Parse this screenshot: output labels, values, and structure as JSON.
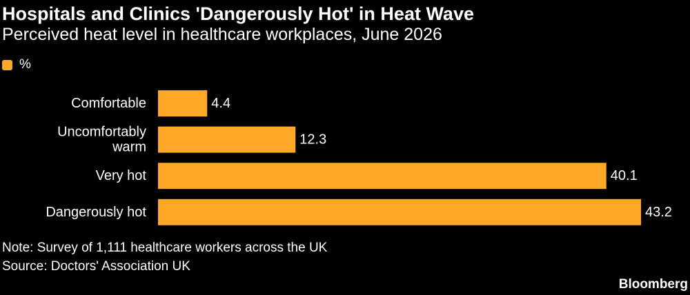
{
  "colors": {
    "background": "#000000",
    "bar": "#ffa726",
    "text": "#ffffff"
  },
  "title": "Hospitals and Clinics 'Dangerously Hot' in Heat Wave",
  "subtitle": "Perceived heat level in healthcare workplaces, June 2026",
  "legend": {
    "label": "%"
  },
  "chart_data": {
    "type": "bar",
    "orientation": "horizontal",
    "categories": [
      "Comfortable",
      "Uncomfortably warm",
      "Very hot",
      "Dangerously hot"
    ],
    "category_lines": [
      [
        "Comfortable"
      ],
      [
        "Uncomfortably",
        "warm"
      ],
      [
        "Very hot"
      ],
      [
        "Dangerously hot"
      ]
    ],
    "series": [
      {
        "name": "%",
        "values": [
          4.4,
          12.3,
          40.1,
          43.2
        ],
        "labels": [
          "4.4",
          "12.3",
          "40.1",
          "43.2"
        ]
      }
    ],
    "xlim": [
      0,
      43.2
    ],
    "grid": false,
    "legend_position": "top-left"
  },
  "note": "Note: Survey of 1,111 healthcare workers across the UK",
  "source": "Source: Doctors' Association UK",
  "brand": "Bloomberg"
}
